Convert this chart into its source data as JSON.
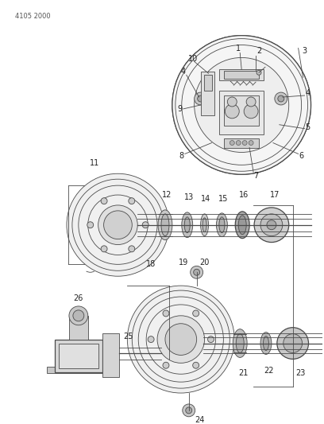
{
  "title_code": "4105 2000",
  "bg_color": "#ffffff",
  "line_color": "#4a4a4a",
  "text_color": "#222222",
  "fig_width": 4.08,
  "fig_height": 5.33,
  "dpi": 100
}
